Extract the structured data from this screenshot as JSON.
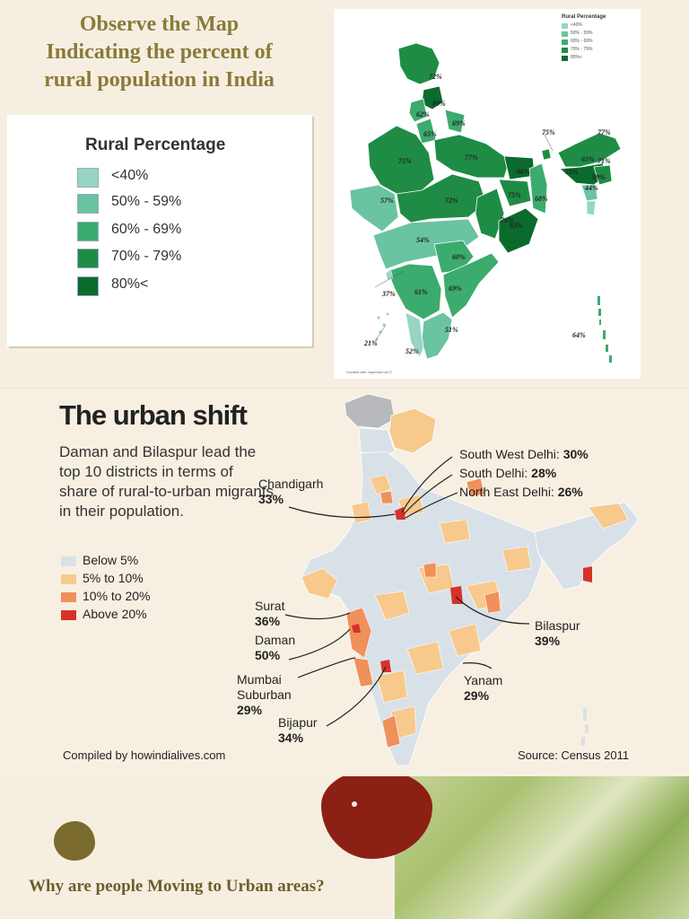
{
  "section1": {
    "title_lines": [
      "Observe the Map",
      "Indicating the percent of",
      "rural population in India"
    ],
    "legend": {
      "title": "Rural Percentage",
      "items": [
        {
          "label": "<40%",
          "color": "#97d4c2"
        },
        {
          "label": "50% - 59%",
          "color": "#6ac3a1"
        },
        {
          "label": "60% - 69%",
          "color": "#3cab6e"
        },
        {
          "label": "70% - 79%",
          "color": "#1f8c46"
        },
        {
          "label": "80%<",
          "color": "#0a6b2c"
        }
      ]
    },
    "map": {
      "mini_legend_title": "Rural Percentage",
      "mini_legend_items": [
        "<40%",
        "50% - 59%",
        "60% - 69%",
        "70% - 79%",
        "80%<"
      ],
      "credit": "Created with mapchart.net ©",
      "labels": [
        "72%",
        "89%",
        "62%",
        "69%",
        "65%",
        "75%",
        "75%",
        "77%",
        "77%",
        "65%",
        "71%",
        "88%",
        "75%",
        "59%",
        "44%",
        "57%",
        "72%",
        "75%",
        "68%",
        "76%",
        "83%",
        "54%",
        "60%",
        "37%",
        "61%",
        "69%",
        "51%",
        "21%",
        "52%",
        "64%"
      ]
    }
  },
  "section2": {
    "title": "The urban shift",
    "description": "Daman and Bilaspur lead the top 10 districts in terms of share of rural-to-urban migrants in their population.",
    "legend": [
      {
        "label": "Below 5%",
        "color": "#d9e1e8"
      },
      {
        "label": "5% to 10%",
        "color": "#f7c98c"
      },
      {
        "label": "10% to 20%",
        "color": "#f0905a"
      },
      {
        "label": "Above 20%",
        "color": "#d6322a"
      }
    ],
    "callouts": {
      "chandigarh": {
        "name": "Chandigarh",
        "value": "33%"
      },
      "sw_delhi": {
        "name": "South West Delhi:",
        "value": "30%"
      },
      "s_delhi": {
        "name": "South Delhi:",
        "value": "28%"
      },
      "ne_delhi": {
        "name": "North East Delhi:",
        "value": "26%"
      },
      "surat": {
        "name": "Surat",
        "value": "36%"
      },
      "daman": {
        "name": "Daman",
        "value": "50%"
      },
      "mumbai": {
        "name1": "Mumbai",
        "name2": "Suburban",
        "value": "29%"
      },
      "bijapur": {
        "name": "Bijapur",
        "value": "34%"
      },
      "bilaspur": {
        "name": "Bilaspur",
        "value": "39%"
      },
      "yanam": {
        "name": "Yanam",
        "value": "29%"
      }
    },
    "compiled_by": "Compiled by howindialives.com",
    "source": "Source: Census 2011"
  },
  "section3": {
    "question": "Why are people Moving to Urban areas?"
  }
}
